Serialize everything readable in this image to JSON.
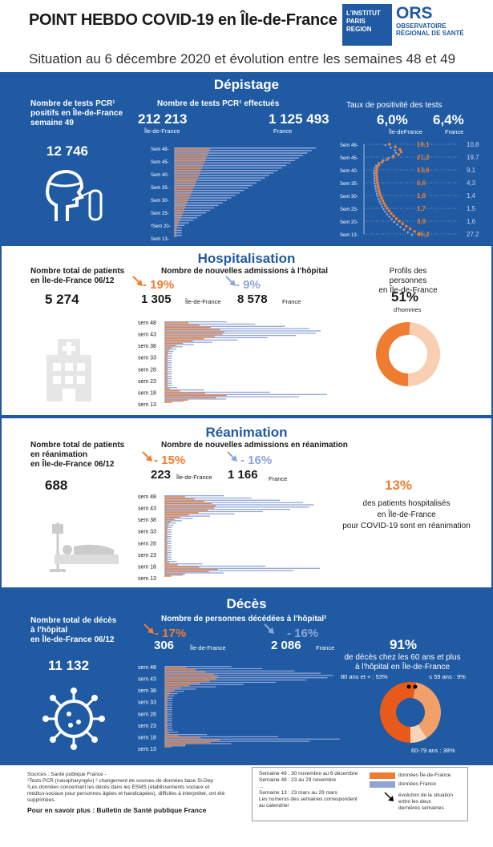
{
  "header": {
    "title": "POINT HEBDO COVID-19 en Île-de-France",
    "subtitle": "Situation au 6 décembre 2020 et évolution entre les semaines 48 et 49",
    "logo_institut": [
      "L'INSTITUT",
      "PARIS",
      "REGION"
    ],
    "logo_ors": "ORS",
    "logo_ors_sub": [
      "OBSERVATOIRE",
      "RÉGIONAL DE SANTÉ"
    ]
  },
  "colors": {
    "blue": "#1f5aa3",
    "orange": "#ee7d31",
    "light_blue": "#8fa5d8"
  },
  "depistage": {
    "title": "Dépistage",
    "left_label": [
      "Nombre de tests PCR¹",
      "positifs en Île-de-France",
      "semaine 49"
    ],
    "left_value": "12 746",
    "left_icon": "test-swab-icon",
    "mid_label": "Nombre de tests PCR¹ effectués",
    "idf_value": "212 213",
    "idf_label": "Île-de-France",
    "fr_value": "1 125 493",
    "fr_label": "France",
    "weeks": [
      "Sem 48-",
      "Sem 45-",
      "Sem 40-",
      "Sem 35-",
      "Sem 30-",
      "Sem 25-",
      "²Sem 20-",
      "Sem 13-"
    ],
    "right_label": "Taux de positivité des tests",
    "rate_idf": "6,0%",
    "rate_idf_label": "Île-deFrance",
    "rate_fr": "6,4%",
    "rate_fr_label": "France",
    "rate_weeks": [
      "Sem 48-",
      "Sem 45-",
      "Sem 40-",
      "Sem 35-",
      "Sem 30-",
      "Sem 25-",
      "Sem 20-",
      "Sem 13-"
    ],
    "rates_idf": [
      "10,1",
      "21,2",
      "13,6",
      "6,6",
      "1,8",
      "1,7",
      "3,9",
      "45,2"
    ],
    "rates_fr": [
      "10,8",
      "19,7",
      "9,1",
      "4,3",
      "1,4",
      "1,5",
      "1,6",
      "27,2"
    ]
  },
  "hospitalisation": {
    "title": "Hospitalisation",
    "left_label": [
      "Nombre total de patients",
      "en Île-de-France 06/12"
    ],
    "left_value": "5 274",
    "left_icon": "hospital-icon",
    "mid_label": "Nombre de nouvelles admissions à l'hôpital",
    "evo_idf": "- 19%",
    "evo_fr": "- 9%",
    "idf_value": "1 305",
    "idf_label": "Île-de-France",
    "fr_value": "8 578",
    "fr_label": "France",
    "weeks": [
      "sem 48",
      "sem 43",
      "sem 38",
      "sem 33",
      "sem 28",
      "sem 23",
      "sem 18",
      "sem 13"
    ],
    "right_label": [
      "Profils des personnes",
      "en Île-de-France"
    ],
    "men_pct": "51%",
    "men_label": "d'hommes",
    "men_fraction": 0.51
  },
  "reanimation": {
    "title": "Réanimation",
    "left_label": [
      "Nombre total de patients",
      "en réanimation",
      "en Île-de-France 06/12"
    ],
    "left_value": "688",
    "left_icon": "icu-bed-icon",
    "mid_label": "Nombre de nouvelles admissions en réanimation",
    "evo_idf": "- 15%",
    "evo_fr": "- 16%",
    "idf_value": "223",
    "idf_label": "Île-de-France",
    "fr_value": "1 166",
    "fr_label": "France",
    "weeks": [
      "sem 48",
      "sem 43",
      "sem 38",
      "sem 33",
      "sem 28",
      "sem 23",
      "sem 18",
      "sem 13"
    ],
    "right_pct": "13%",
    "right_text": [
      "des patients hospitalisés",
      "en Île-de-France",
      "pour COVID-19 sont en réanimation"
    ]
  },
  "deces": {
    "title": "Décès",
    "left_label": [
      "Nombre total de décès",
      "à l'hôpital",
      "en Île-de-France 06/12"
    ],
    "left_value": "11 132",
    "left_icon": "virus-icon",
    "mid_label": "Nombre de personnes décédées à l'hôpital²",
    "evo_idf": "- 17%",
    "evo_fr": "- 16%",
    "idf_value": "306",
    "idf_label": "Île-de-France",
    "fr_value": "2 086",
    "fr_label": "France",
    "weeks": [
      "sem 48",
      "sem 43",
      "sem 38",
      "sem 33",
      "sem 28",
      "sem 23",
      "sem 18",
      "sem 13"
    ],
    "right_pct": "91%",
    "right_text": [
      "de décès chez les 60 ans et plus",
      "à l'hôpital en Île-de-France"
    ],
    "age_80": "80 ans et + : 53%",
    "age_59": "≤ 59 ans : 9%",
    "age_6079": "60-79 ans : 38%",
    "age_fractions": [
      0.53,
      0.38,
      0.09
    ]
  },
  "footer": {
    "sources": [
      "Sources : Santé publique France -",
      "¹Tests PCR (nasopharyngés) ² changement de sources de données base Si-Dep",
      "²Les données concernant les décès dans les ESMS  (établissements sociaux et",
      "médico-sociaux pour personnes âgées et handicapées), difficiles à interpréter, ont été supprimées."
    ],
    "more": "Pour en savoir plus : Bulletin de Santé publique France",
    "legend_weeks": [
      "Semaine 49 : 30 novembre au 6 décembre",
      "Semaine 48 : 23 au 29 novembre",
      "...",
      "Semaine 13 : 23 mars au 29 mars",
      "Les numeros des semaines correspondent",
      "au calendrier"
    ],
    "legend_idf": "données Île-de-France",
    "legend_fr": "données France",
    "legend_evo": [
      "évolution de la situation",
      "entre les deux",
      "dernières semaines"
    ]
  }
}
